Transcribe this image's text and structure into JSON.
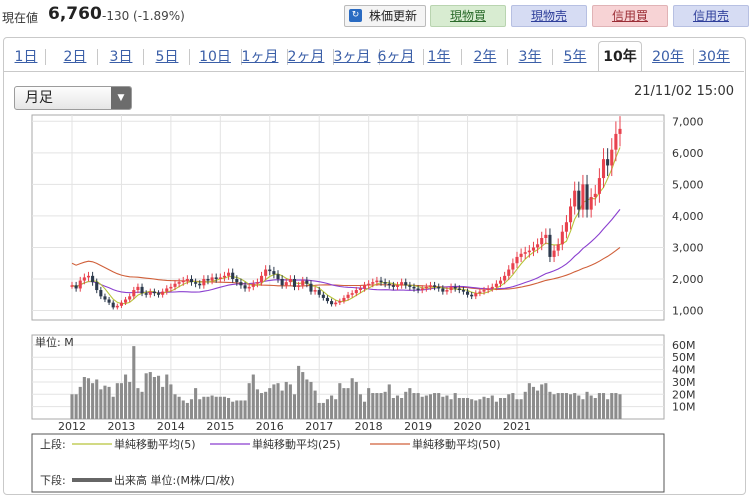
{
  "header": {
    "price_label": "現在値",
    "price": "6,760",
    "change": "-130 (-1.89%)",
    "refresh_label": "株価更新",
    "buttons": [
      {
        "label": "現物買",
        "style": "green"
      },
      {
        "label": "現物売",
        "style": "blue"
      },
      {
        "label": "信用買",
        "style": "pink"
      },
      {
        "label": "信用売",
        "style": "blue"
      }
    ]
  },
  "tabs": [
    {
      "label": "1日",
      "active": false
    },
    {
      "label": "2日",
      "active": false
    },
    {
      "label": "3日",
      "active": false
    },
    {
      "label": "5日",
      "active": false
    },
    {
      "label": "10日",
      "active": false
    },
    {
      "label": "1ヶ月",
      "active": false
    },
    {
      "label": "2ヶ月",
      "active": false
    },
    {
      "label": "3ヶ月",
      "active": false
    },
    {
      "label": "6ヶ月",
      "active": false
    },
    {
      "label": "1年",
      "active": false
    },
    {
      "label": "2年",
      "active": false
    },
    {
      "label": "3年",
      "active": false
    },
    {
      "label": "5年",
      "active": false
    },
    {
      "label": "10年",
      "active": true
    },
    {
      "label": "20年",
      "active": false
    },
    {
      "label": "30年",
      "active": false
    }
  ],
  "period_select": {
    "value": "月足"
  },
  "datetime": "21/11/02 15:00",
  "colors": {
    "up": "#e8424e",
    "down": "#2d3a4d",
    "ma5": "#b8c43a",
    "ma25": "#8a3fcf",
    "ma50": "#d0603a",
    "volume": "#8c8c8c"
  },
  "chart_data": {
    "type": "candlestick",
    "x_start_year": 2012,
    "x_tick_labels": [
      "2012",
      "2013",
      "2014",
      "2015",
      "2016",
      "2017",
      "2018",
      "2019",
      "2020",
      "2021"
    ],
    "price_axis": {
      "range": [
        700,
        7200
      ],
      "ticks": [
        1000,
        2000,
        3000,
        4000,
        5000,
        6000,
        7000
      ]
    },
    "price_tick_labels": [
      "1,000",
      "2,000",
      "3,000",
      "4,000",
      "5,000",
      "6,000",
      "7,000"
    ],
    "volume_axis": {
      "range": [
        0,
        68
      ],
      "ticks": [
        10,
        20,
        30,
        40,
        50,
        60
      ],
      "tick_labels": [
        "10M",
        "20M",
        "30M",
        "40M",
        "50M",
        "60M"
      ],
      "unit_label": "単位: M"
    },
    "close": [
      1800,
      1700,
      1950,
      2050,
      2100,
      1900,
      1650,
      1450,
      1350,
      1250,
      1100,
      1150,
      1250,
      1350,
      1450,
      1650,
      1750,
      1550,
      1500,
      1600,
      1550,
      1500,
      1600,
      1700,
      1750,
      1850,
      1900,
      1950,
      2000,
      1900,
      1850,
      1800,
      2000,
      1950,
      2050,
      2000,
      2050,
      2100,
      2200,
      2000,
      1900,
      1800,
      1700,
      1750,
      1850,
      1900,
      2100,
      2300,
      2250,
      2150,
      2000,
      1800,
      1900,
      2000,
      1750,
      1800,
      1950,
      1850,
      1600,
      1650,
      1500,
      1400,
      1300,
      1200,
      1250,
      1300,
      1400,
      1500,
      1550,
      1650,
      1700,
      1800,
      1850,
      1900,
      1950,
      1900,
      1850,
      1800,
      1750,
      1800,
      1900,
      1800,
      1750,
      1700,
      1650,
      1700,
      1750,
      1800,
      1750,
      1700,
      1600,
      1650,
      1750,
      1700,
      1650,
      1600,
      1500,
      1450,
      1550,
      1600,
      1650,
      1700,
      1750,
      1850,
      1950,
      2100,
      2300,
      2500,
      2700,
      2800,
      2850,
      2900,
      3000,
      3100,
      3300,
      3400,
      2700,
      2900,
      3100,
      3500,
      3800,
      4300,
      4800,
      4200,
      5000,
      4200,
      4600,
      4700,
      5200,
      5800,
      5600,
      6100,
      6600,
      6760
    ],
    "volume": [
      20,
      20,
      26,
      34,
      33,
      29,
      32,
      24,
      27,
      26,
      18,
      29,
      29,
      36,
      30,
      59,
      25,
      22,
      37,
      38,
      34,
      35,
      26,
      36,
      28,
      20,
      18,
      15,
      13,
      16,
      25,
      16,
      18,
      18,
      19,
      18,
      18,
      18,
      17,
      14,
      15,
      15,
      15,
      29,
      36,
      24,
      21,
      22,
      25,
      28,
      29,
      23,
      30,
      28,
      20,
      43,
      38,
      32,
      30,
      23,
      13,
      13,
      16,
      19,
      16,
      29,
      25,
      25,
      33,
      30,
      20,
      14,
      25,
      21,
      21,
      21,
      22,
      28,
      17,
      19,
      17,
      22,
      25,
      21,
      21,
      18,
      19,
      20,
      21,
      21,
      18,
      19,
      16,
      21,
      17,
      17,
      17,
      16,
      15,
      16,
      18,
      17,
      19,
      14,
      17,
      17,
      20,
      21,
      16,
      16,
      22,
      29,
      26,
      23,
      28,
      29,
      22,
      20,
      21,
      21,
      21,
      20,
      21,
      19,
      16,
      22,
      19,
      17,
      21,
      21,
      16,
      21,
      21,
      20
    ]
  },
  "legend": {
    "top_label": "上段:",
    "bottom_label": "下段:",
    "ma5": "単純移動平均(5)",
    "ma25": "単純移動平均(25)",
    "ma50": "単純移動平均(50)",
    "volume": "出来高 単位:(M株/口/枚)"
  }
}
